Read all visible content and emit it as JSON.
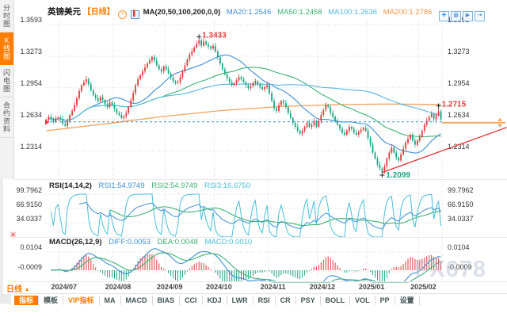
{
  "colors": {
    "up": "#e23b3b",
    "down": "#1ba784",
    "ma20": "#3e8fd8",
    "ma50": "#3bb273",
    "ma100": "#55b7e0",
    "ma200": "#f5a25a",
    "accent_orange": "#ff7d00",
    "rsi1": "#3e8fd8",
    "rsi2": "#3bb273",
    "rsi3": "#45c0dc",
    "diff": "#3e8fd8",
    "dea": "#3bb273",
    "macd_value": "#45c0dc",
    "grid": "#d9d9d9",
    "axis_text": "#333333",
    "trend": "#e23b3b",
    "dashed": "#3e8fd8",
    "watermark": "#b9c2d4"
  },
  "sidebar": {
    "tabs": [
      {
        "name": "time-chart",
        "label": "分时图",
        "active": false
      },
      {
        "name": "kline-chart",
        "label": "K线图",
        "active": true
      },
      {
        "name": "lightning-chart",
        "label": "闪电图",
        "active": false
      },
      {
        "name": "contract-info",
        "label": "合约资料",
        "active": false
      }
    ]
  },
  "main_header": {
    "symbol": "英镑美元",
    "period_tag": "【日线】",
    "ma_settings": "MA(20,50,100,200,0,0)",
    "ma20": "MA20:1.2546",
    "ma50": "MA50:1.2458",
    "ma100": "MA100:1.2636",
    "ma200": "MA200:1.2786"
  },
  "window_icons": [
    {
      "name": "split-screen"
    },
    {
      "name": "indicator-window"
    },
    {
      "name": "play-forward"
    },
    {
      "name": "jump-latest"
    }
  ],
  "rsi_header": {
    "title": "RSI(14,14,2)",
    "rsi1": "RSI1:54.9749",
    "rsi2": "RSI2:54.9749",
    "rsi3": "RSI3:16.6750"
  },
  "macd_header": {
    "title": "MACD(26,12,9)",
    "diff": "DIFF:0.0053",
    "dea": "DEA:0.0048",
    "macd": "MACD:0.0010"
  },
  "period_button": {
    "label": "日线",
    "arrow": "▲"
  },
  "watermark": "FX678",
  "toolbar": {
    "items": [
      {
        "name": "indicators",
        "label": "指标",
        "style": "active"
      },
      {
        "name": "templates",
        "label": "模板",
        "style": ""
      },
      {
        "name": "vip-indicators",
        "label": "VIP指标",
        "style": "vip"
      },
      {
        "name": "ma",
        "label": "MA",
        "style": ""
      },
      {
        "name": "macd",
        "label": "MACD",
        "style": ""
      },
      {
        "name": "bias",
        "label": "BIAS",
        "style": ""
      },
      {
        "name": "cci",
        "label": "CCI",
        "style": ""
      },
      {
        "name": "kdj",
        "label": "KDJ",
        "style": ""
      },
      {
        "name": "lwr",
        "label": "LWR",
        "style": ""
      },
      {
        "name": "rsi",
        "label": "RSI",
        "style": ""
      },
      {
        "name": "cr",
        "label": "CR",
        "style": ""
      },
      {
        "name": "psy",
        "label": "PSY",
        "style": ""
      },
      {
        "name": "boll",
        "label": "BOLL",
        "style": ""
      },
      {
        "name": "vol",
        "label": "VOL",
        "style": ""
      },
      {
        "name": "pp",
        "label": "PP",
        "style": ""
      },
      {
        "name": "settings",
        "label": "设置",
        "style": ""
      }
    ]
  },
  "chart_data": [
    {
      "type": "candlestick",
      "title": "英镑美元 日线 (GBP/USD daily)",
      "y_ticks": [
        1.3593,
        1.3273,
        1.2954,
        1.2634,
        1.2314
      ],
      "x_labels": [
        "2024/07",
        "2024/08",
        "2024/09",
        "2024/10",
        "2024/11",
        "2024/12",
        "2025/01",
        "2025/02"
      ],
      "tick_indices": [
        6,
        29,
        51,
        72,
        95,
        116,
        137,
        159
      ],
      "closes": [
        1.263,
        1.266,
        1.264,
        1.261,
        1.2645,
        1.2655,
        1.264,
        1.259,
        1.257,
        1.262,
        1.268,
        1.272,
        1.278,
        1.285,
        1.292,
        1.298,
        1.301,
        1.304,
        1.299,
        1.293,
        1.288,
        1.285,
        1.282,
        1.286,
        1.283,
        1.279,
        1.276,
        1.281,
        1.278,
        1.274,
        1.27,
        1.268,
        1.265,
        1.2665,
        1.27,
        1.276,
        1.283,
        1.29,
        1.298,
        1.304,
        1.308,
        1.312,
        1.316,
        1.32,
        1.323,
        1.3266,
        1.323,
        1.318,
        1.314,
        1.312,
        1.317,
        1.314,
        1.31,
        1.306,
        1.302,
        1.3,
        1.301,
        1.306,
        1.312,
        1.318,
        1.324,
        1.329,
        1.332,
        1.336,
        1.34,
        1.3433,
        1.338,
        1.342,
        1.339,
        1.337,
        1.335,
        1.3375,
        1.332,
        1.326,
        1.32,
        1.314,
        1.309,
        1.305,
        1.301,
        1.298,
        1.3,
        1.303,
        1.306,
        1.304,
        1.301,
        1.298,
        1.295,
        1.297,
        1.3,
        1.302,
        1.299,
        1.296,
        1.294,
        1.296,
        1.298,
        1.29,
        1.282,
        1.275,
        1.272,
        1.278,
        1.282,
        1.28,
        1.276,
        1.27,
        1.265,
        1.26,
        1.256,
        1.252,
        1.249,
        1.252,
        1.256,
        1.26,
        1.256,
        1.258,
        1.262,
        1.256,
        1.262,
        1.268,
        1.273,
        1.278,
        1.276,
        1.27,
        1.266,
        1.262,
        1.258,
        1.254,
        1.25,
        1.248,
        1.252,
        1.256,
        1.254,
        1.25,
        1.248,
        1.251,
        1.253,
        1.255,
        1.252,
        1.245,
        1.238,
        1.23,
        1.224,
        1.218,
        1.214,
        1.2099,
        1.216,
        1.224,
        1.23,
        1.235,
        1.23,
        1.225,
        1.222,
        1.228,
        1.234,
        1.24,
        1.244,
        1.248,
        1.242,
        1.238,
        1.242,
        1.246,
        1.252,
        1.258,
        1.262,
        1.266,
        1.269,
        1.264,
        1.268,
        1.2715,
        1.2634
      ],
      "ma_periods": [
        20,
        50,
        100
      ],
      "ma200_keypoints": [
        [
          0,
          1.252
        ],
        [
          25,
          1.259
        ],
        [
          50,
          1.2665
        ],
        [
          75,
          1.2725
        ],
        [
          100,
          1.2765
        ],
        [
          125,
          1.2785
        ],
        [
          145,
          1.279
        ],
        [
          168,
          1.2786
        ]
      ],
      "reference": {
        "dashed_blue": 1.261,
        "last_price": 1.2634,
        "trendline": [
          [
            143,
            1.2099
          ],
          [
            196,
            1.2554
          ]
        ]
      },
      "annotations": [
        {
          "index": 65,
          "label": "1.3433",
          "position": "above",
          "color": "#e23b3b"
        },
        {
          "index": 143,
          "label": "1.2099",
          "position": "below",
          "color": "#1ba784"
        },
        {
          "index": 167,
          "label": "1.2715",
          "position": "above",
          "color": "#e23b3b"
        }
      ]
    },
    {
      "type": "line",
      "name": "RSI",
      "params": [
        14,
        14,
        2
      ],
      "derived_from": "closes",
      "y_ticks": [
        99.7962,
        66.915,
        34.0337
      ],
      "last_values": {
        "rsi1": 54.9749,
        "rsi2": 54.9749,
        "rsi3": 16.675
      }
    },
    {
      "type": "bar",
      "name": "MACD",
      "params": [
        26,
        12,
        9
      ],
      "derived_from": "closes",
      "y_ticks": [
        0.0104,
        -0.0009
      ],
      "last_values": {
        "diff": 0.0053,
        "dea": 0.0048,
        "macd": 0.001
      }
    }
  ]
}
